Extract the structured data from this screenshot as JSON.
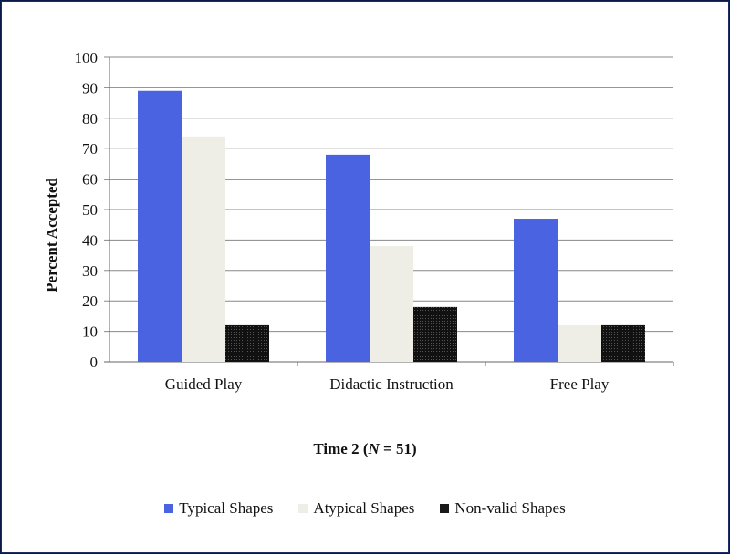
{
  "chart_data": {
    "type": "bar",
    "title_prefix": "Time 2 (",
    "title_n": "N",
    "title_suffix": " = 51)",
    "xlabel": "",
    "ylabel": "Percent  Accepted",
    "ylim": [
      0,
      100
    ],
    "yticks": [
      0,
      10,
      20,
      30,
      40,
      50,
      60,
      70,
      80,
      90,
      100
    ],
    "grid": true,
    "legend_position": "bottom",
    "categories": [
      "Guided Play",
      "Didactic Instruction",
      "Free Play"
    ],
    "series": [
      {
        "name": "Typical Shapes",
        "values": [
          89,
          68,
          47
        ],
        "color": "#4a63e0"
      },
      {
        "name": "Atypical Shapes",
        "values": [
          74,
          38,
          12
        ],
        "color": "#eeeee6"
      },
      {
        "name": "Non-valid Shapes",
        "values": [
          12,
          18,
          12
        ],
        "color": "#1a1a1a"
      }
    ]
  }
}
